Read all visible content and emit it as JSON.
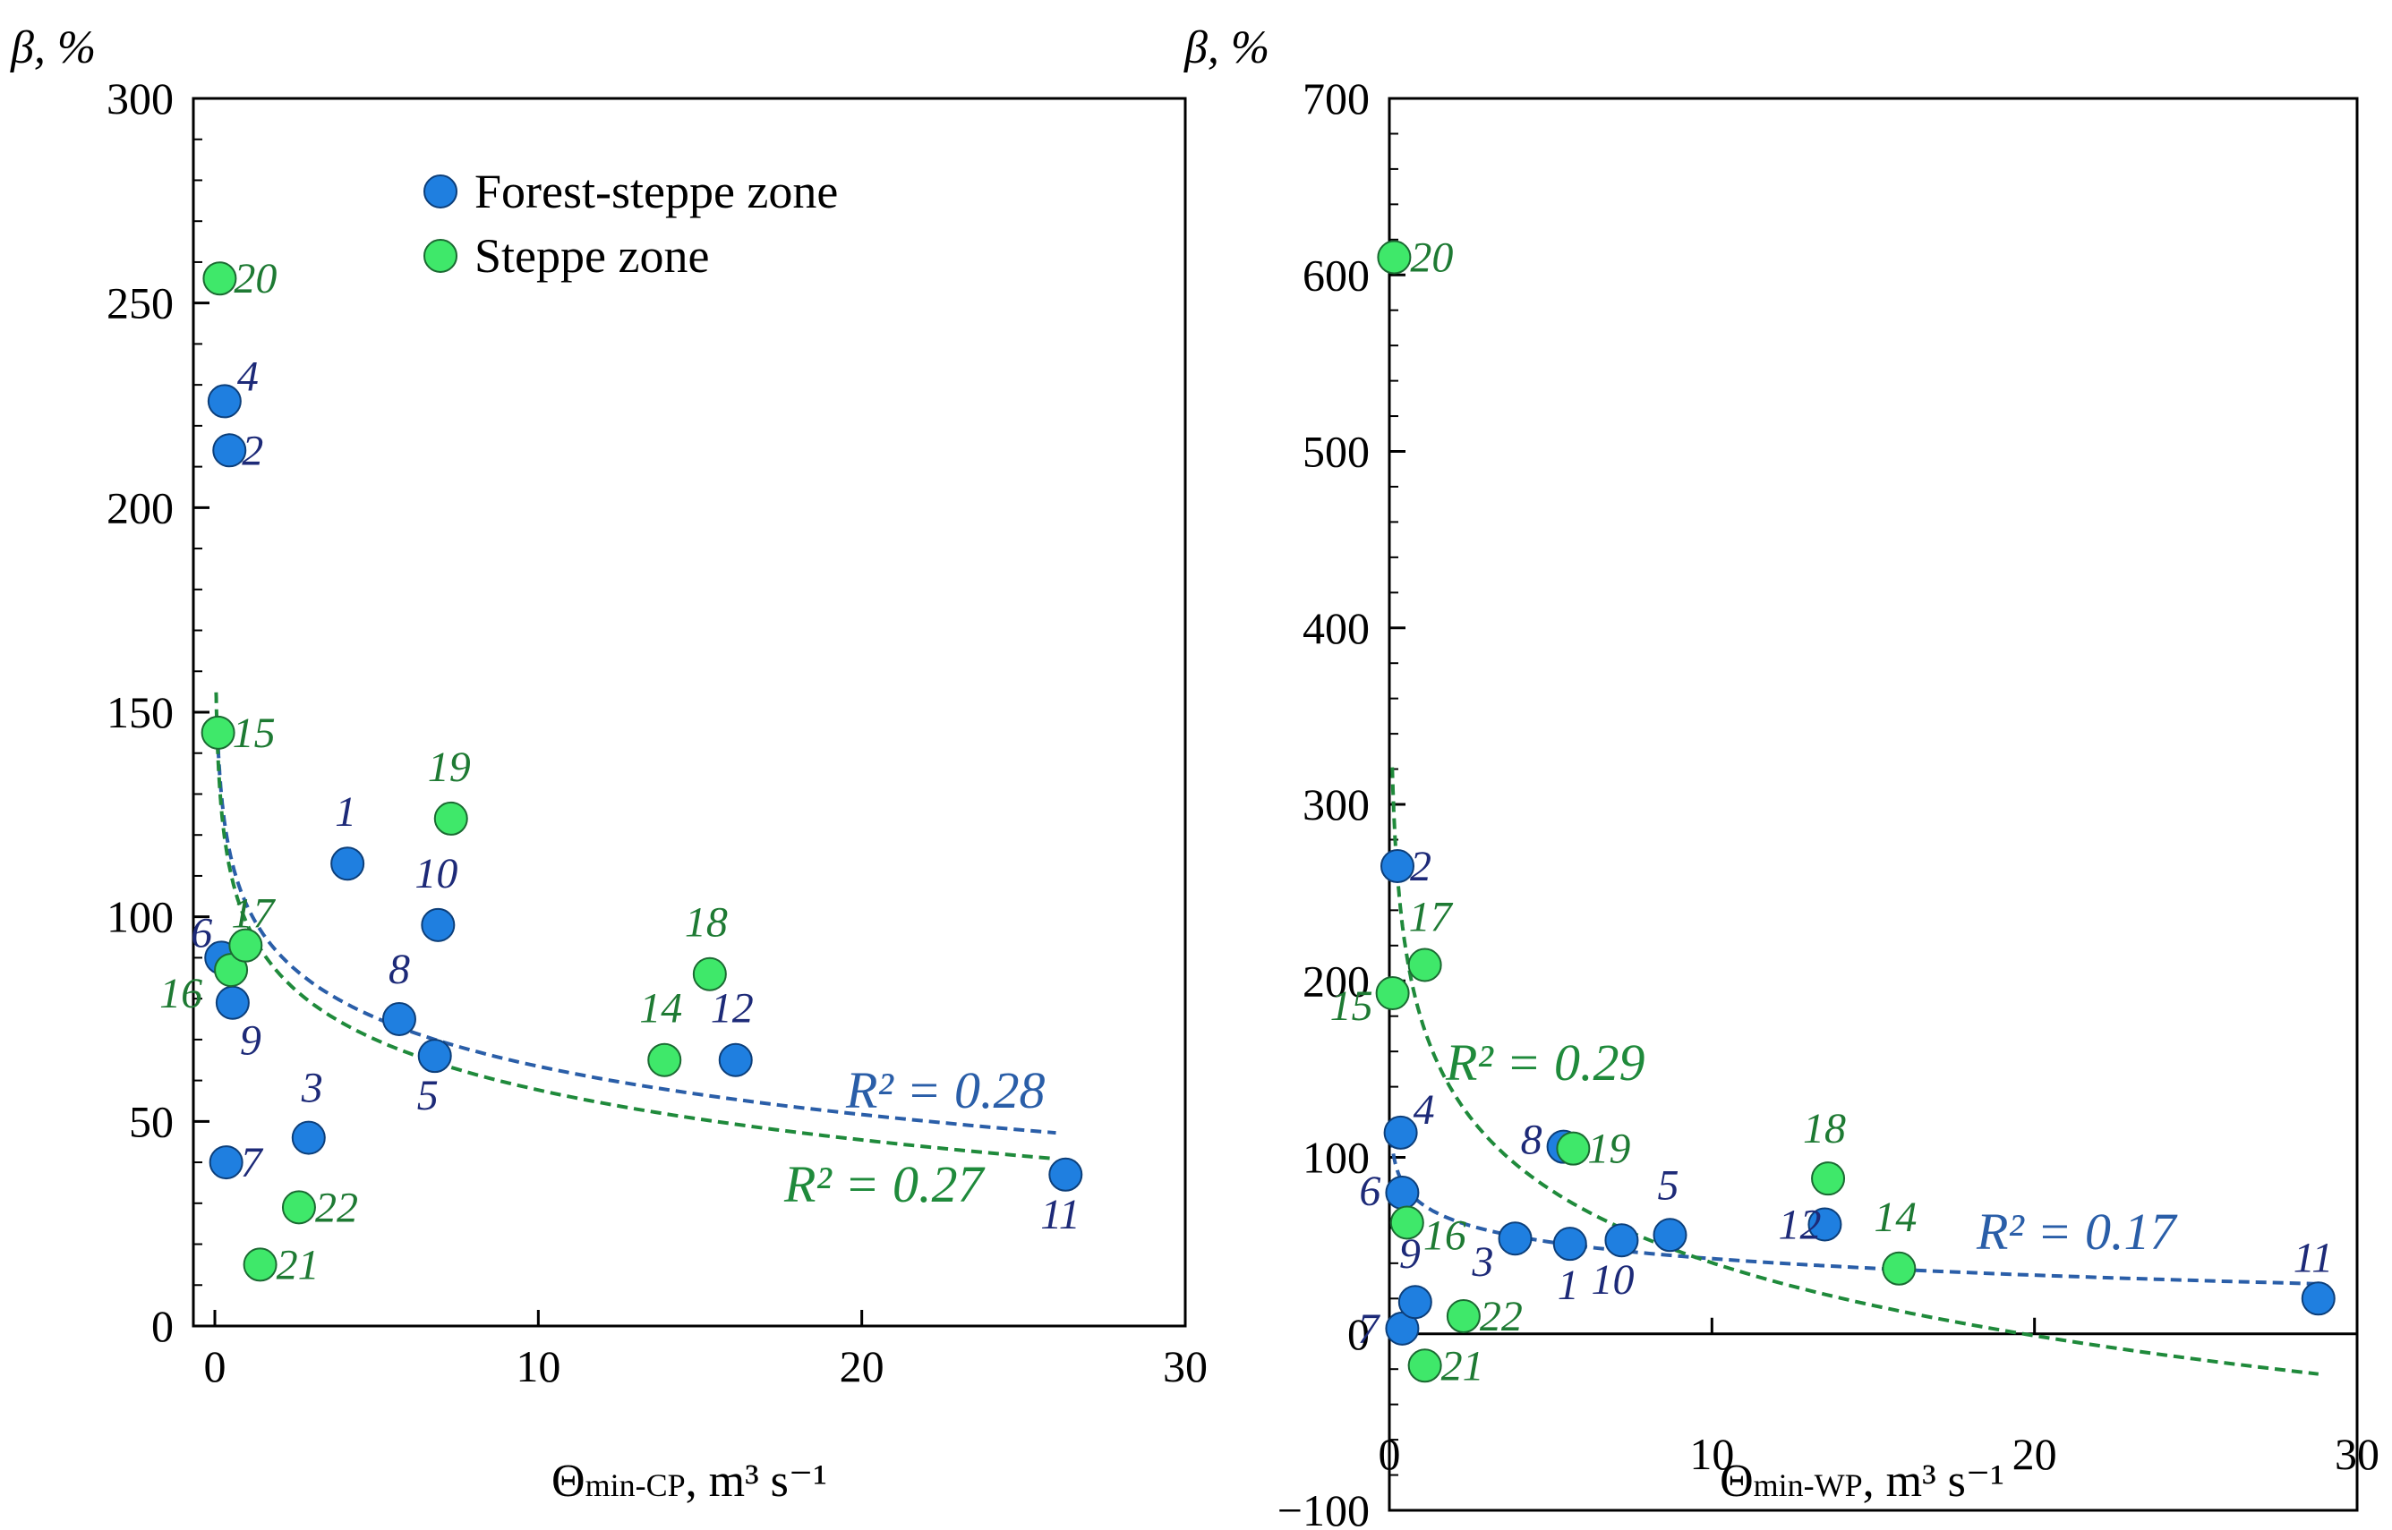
{
  "colors": {
    "forest": "#1f7fe0",
    "forest_label": "#1d2a78",
    "steppe": "#3fe86a",
    "steppe_label": "#1e7a33",
    "trend_forest": "#2a5ea8",
    "trend_steppe": "#1f8a3b"
  },
  "legend": {
    "forest_label": "Forest-steppe zone",
    "steppe_label": "Steppe zone"
  },
  "chart_data": [
    {
      "type": "scatter",
      "id": "cp",
      "ylabel": "β, %",
      "xlabel_main": "Θ",
      "xlabel_sub": "min-CP",
      "xlabel_units": ", m³ s⁻¹",
      "xlim": [
        0,
        30
      ],
      "ylim": [
        0,
        300
      ],
      "xticks": [
        0,
        10,
        20,
        30
      ],
      "yticks": [
        0,
        50,
        100,
        150,
        200,
        250,
        300
      ],
      "xtick_labels": [
        "0",
        "10",
        "20",
        "30"
      ],
      "ytick_labels": [
        "0",
        "50",
        "100",
        "150",
        "200",
        "250",
        "300"
      ],
      "series": [
        {
          "name": "Forest-steppe zone",
          "points": [
            {
              "label": "1",
              "x": 4.1,
              "y": 113
            },
            {
              "label": "2",
              "x": 0.45,
              "y": 214
            },
            {
              "label": "3",
              "x": 2.9,
              "y": 46
            },
            {
              "label": "4",
              "x": 0.3,
              "y": 226
            },
            {
              "label": "5",
              "x": 6.8,
              "y": 66
            },
            {
              "label": "6",
              "x": 0.2,
              "y": 90
            },
            {
              "label": "7",
              "x": 0.35,
              "y": 40
            },
            {
              "label": "8",
              "x": 5.7,
              "y": 75
            },
            {
              "label": "9",
              "x": 0.55,
              "y": 79
            },
            {
              "label": "10",
              "x": 6.9,
              "y": 98
            },
            {
              "label": "11",
              "x": 26.3,
              "y": 37
            },
            {
              "label": "12",
              "x": 16.1,
              "y": 65
            }
          ]
        },
        {
          "name": "Steppe zone",
          "points": [
            {
              "label": "14",
              "x": 13.9,
              "y": 65
            },
            {
              "label": "15",
              "x": 0.1,
              "y": 145
            },
            {
              "label": "16",
              "x": 0.5,
              "y": 87
            },
            {
              "label": "17",
              "x": 0.95,
              "y": 93
            },
            {
              "label": "18",
              "x": 15.3,
              "y": 86
            },
            {
              "label": "19",
              "x": 7.3,
              "y": 124
            },
            {
              "label": "20",
              "x": 0.15,
              "y": 256
            },
            {
              "label": "21",
              "x": 1.4,
              "y": 15
            },
            {
              "label": "22",
              "x": 2.6,
              "y": 29
            }
          ]
        }
      ],
      "trendlines": [
        {
          "series": "Forest-steppe zone",
          "type": "logarithmic",
          "a": 102.6,
          "b": -17.0,
          "x_range": [
            0.08,
            26
          ],
          "r2_label": "R² = 0.28"
        },
        {
          "series": "Steppe zone",
          "type": "logarithmic",
          "a": 98.2,
          "b": -17.6,
          "x_range": [
            0.04,
            26
          ],
          "r2_label": "R² = 0.27"
        }
      ]
    },
    {
      "type": "scatter",
      "id": "wp",
      "ylabel": "β, %",
      "xlabel_main": "Θ",
      "xlabel_sub": "min-WP",
      "xlabel_units": ", m³ s⁻¹",
      "xlim": [
        0,
        30
      ],
      "ylim": [
        -100,
        700
      ],
      "xticks": [
        0,
        10,
        20,
        30
      ],
      "yticks": [
        -100,
        0,
        100,
        200,
        300,
        400,
        500,
        600,
        700
      ],
      "xtick_labels": [
        "0",
        "10",
        "20",
        "30"
      ],
      "ytick_labels": [
        "−100",
        "0",
        "100",
        "200",
        "300",
        "400",
        "500",
        "600",
        "700"
      ],
      "series": [
        {
          "name": "Forest-steppe zone",
          "points": [
            {
              "label": "1",
              "x": 5.6,
              "y": 51
            },
            {
              "label": "2",
              "x": 0.25,
              "y": 265
            },
            {
              "label": "3",
              "x": 3.9,
              "y": 54
            },
            {
              "label": "4",
              "x": 0.35,
              "y": 114
            },
            {
              "label": "5",
              "x": 8.7,
              "y": 56
            },
            {
              "label": "6",
              "x": 0.4,
              "y": 80
            },
            {
              "label": "7",
              "x": 0.4,
              "y": 3
            },
            {
              "label": "8",
              "x": 5.4,
              "y": 106
            },
            {
              "label": "9",
              "x": 0.8,
              "y": 18
            },
            {
              "label": "10",
              "x": 7.2,
              "y": 53
            },
            {
              "label": "11",
              "x": 28.8,
              "y": 20
            },
            {
              "label": "12",
              "x": 13.5,
              "y": 62
            }
          ]
        },
        {
          "name": "Steppe zone",
          "points": [
            {
              "label": "14",
              "x": 15.8,
              "y": 37
            },
            {
              "label": "15",
              "x": 0.1,
              "y": 193
            },
            {
              "label": "16",
              "x": 0.55,
              "y": 63
            },
            {
              "label": "17",
              "x": 1.1,
              "y": 209
            },
            {
              "label": "18",
              "x": 13.6,
              "y": 88
            },
            {
              "label": "19",
              "x": 5.7,
              "y": 105
            },
            {
              "label": "20",
              "x": 0.15,
              "y": 610
            },
            {
              "label": "21",
              "x": 1.1,
              "y": -18
            },
            {
              "label": "22",
              "x": 2.3,
              "y": 10
            }
          ]
        }
      ],
      "trendlines": [
        {
          "series": "Forest-steppe zone",
          "type": "logarithmic",
          "a": 73.7,
          "b": -13.5,
          "x_range": [
            0.06,
            28.8
          ],
          "r2_label": "R² = 0.17"
        },
        {
          "series": "Steppe zone",
          "type": "logarithmic",
          "a": 177.5,
          "b": -59.6,
          "x_range": [
            0.09,
            28.8
          ],
          "r2_label": "R² = 0.29"
        }
      ]
    }
  ]
}
